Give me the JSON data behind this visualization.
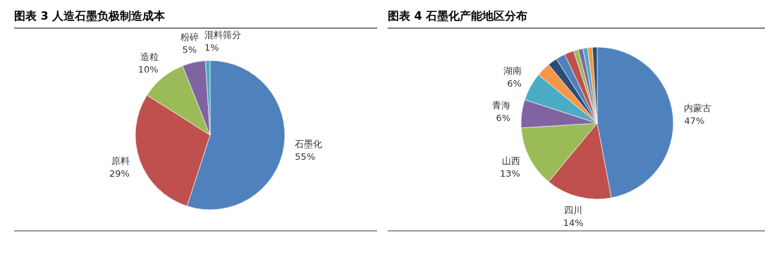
{
  "chart_data": [
    {
      "type": "pie",
      "title": "图表 3 人造石墨负极制造成本",
      "categories": [
        "石墨化",
        "原料",
        "造粒",
        "粉碎",
        "混料筛分"
      ],
      "values": [
        55,
        29,
        10,
        5,
        1
      ],
      "colors": [
        "#4f81bd",
        "#c0504d",
        "#9bbb59",
        "#8064a2",
        "#4bacc6"
      ],
      "value_labels": [
        "55%",
        "29%",
        "10%",
        "5%",
        "1%"
      ]
    },
    {
      "type": "pie",
      "title": "图表 4 石墨化产能地区分布",
      "categories": [
        "内蒙古",
        "四川",
        "山西",
        "青海",
        "湖南",
        null,
        null,
        null,
        null,
        null,
        null,
        null,
        null,
        null
      ],
      "values": [
        47,
        14,
        13,
        6,
        6,
        3,
        2,
        2,
        2,
        1,
        1,
        1,
        1,
        1
      ],
      "value_labels": [
        "47%",
        "14%",
        "13%",
        "6%",
        "6%",
        null,
        null,
        null,
        null,
        null,
        null,
        null,
        null,
        null
      ],
      "colors": [
        "#4f81bd",
        "#c0504d",
        "#9bbb59",
        "#8064a2",
        "#4bacc6",
        "#f79646",
        "#2c4d75",
        "#4f81bd",
        "#c0504d",
        "#9bbb59",
        "#8064a2",
        "#4bacc6",
        "#f79646",
        "#2c4d75"
      ]
    }
  ]
}
